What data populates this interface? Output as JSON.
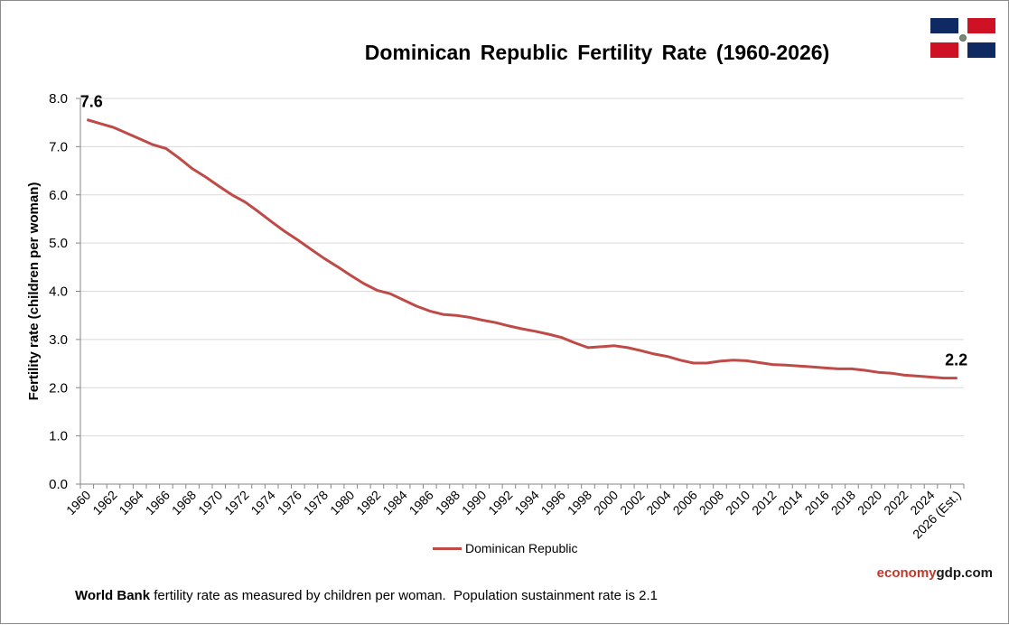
{
  "chart_data": {
    "type": "line",
    "title": "Dominican Republic Fertility Rate (1960-2026)",
    "ylabel": "Fertility rate (children per woman)",
    "xlabel": "",
    "ylim": [
      0,
      8
    ],
    "yticks": [
      "0.0",
      "1.0",
      "2.0",
      "3.0",
      "4.0",
      "5.0",
      "6.0",
      "7.0",
      "8.0"
    ],
    "xtick_labels": [
      "1960",
      "1962",
      "1964",
      "1966",
      "1968",
      "1970",
      "1972",
      "1974",
      "1976",
      "1978",
      "1980",
      "1982",
      "1984",
      "1986",
      "1988",
      "1990",
      "1992",
      "1994",
      "1996",
      "1998",
      "2000",
      "2002",
      "2004",
      "2006",
      "2008",
      "2010",
      "2012",
      "2014",
      "2016",
      "2018",
      "2020",
      "2022",
      "2024",
      "2026 (Est.)"
    ],
    "grid": true,
    "legend_position": "bottom-center",
    "x": [
      1960,
      1961,
      1962,
      1963,
      1964,
      1965,
      1966,
      1967,
      1968,
      1969,
      1970,
      1971,
      1972,
      1973,
      1974,
      1975,
      1976,
      1977,
      1978,
      1979,
      1980,
      1981,
      1982,
      1983,
      1984,
      1985,
      1986,
      1987,
      1988,
      1989,
      1990,
      1991,
      1992,
      1993,
      1994,
      1995,
      1996,
      1997,
      1998,
      1999,
      2000,
      2001,
      2002,
      2003,
      2004,
      2005,
      2006,
      2007,
      2008,
      2009,
      2010,
      2011,
      2012,
      2013,
      2014,
      2015,
      2016,
      2017,
      2018,
      2019,
      2020,
      2021,
      2022,
      2023,
      2024,
      2025,
      2026
    ],
    "series": [
      {
        "name": "Dominican Republic",
        "color": "#be4b48",
        "values": [
          7.56,
          7.48,
          7.4,
          7.28,
          7.16,
          7.04,
          6.96,
          6.76,
          6.54,
          6.37,
          6.18,
          6.0,
          5.85,
          5.65,
          5.44,
          5.24,
          5.06,
          4.87,
          4.68,
          4.51,
          4.33,
          4.16,
          4.02,
          3.95,
          3.82,
          3.69,
          3.59,
          3.52,
          3.5,
          3.46,
          3.4,
          3.35,
          3.28,
          3.22,
          3.17,
          3.11,
          3.04,
          2.93,
          2.83,
          2.85,
          2.87,
          2.83,
          2.77,
          2.7,
          2.65,
          2.57,
          2.51,
          2.51,
          2.55,
          2.57,
          2.56,
          2.52,
          2.48,
          2.47,
          2.45,
          2.43,
          2.41,
          2.39,
          2.39,
          2.36,
          2.32,
          2.3,
          2.26,
          2.24,
          2.22,
          2.2,
          2.2
        ]
      }
    ],
    "annotations": [
      {
        "text": "7.6",
        "at": "start"
      },
      {
        "text": "2.2",
        "at": "end"
      }
    ]
  },
  "legend": {
    "label": "Dominican Republic"
  },
  "brand": {
    "part1": "economy",
    "part2": "gdp.com"
  },
  "footnote": {
    "strong": "World Bank",
    "rest": " fertility rate as measured by children per woman.  Population sustainment rate is 2.1"
  },
  "colors": {
    "line": "#be4b48",
    "grid": "#d9d9d9",
    "axis": "#868686",
    "flag_blue": "#0f2a63",
    "flag_red": "#cf1126"
  }
}
